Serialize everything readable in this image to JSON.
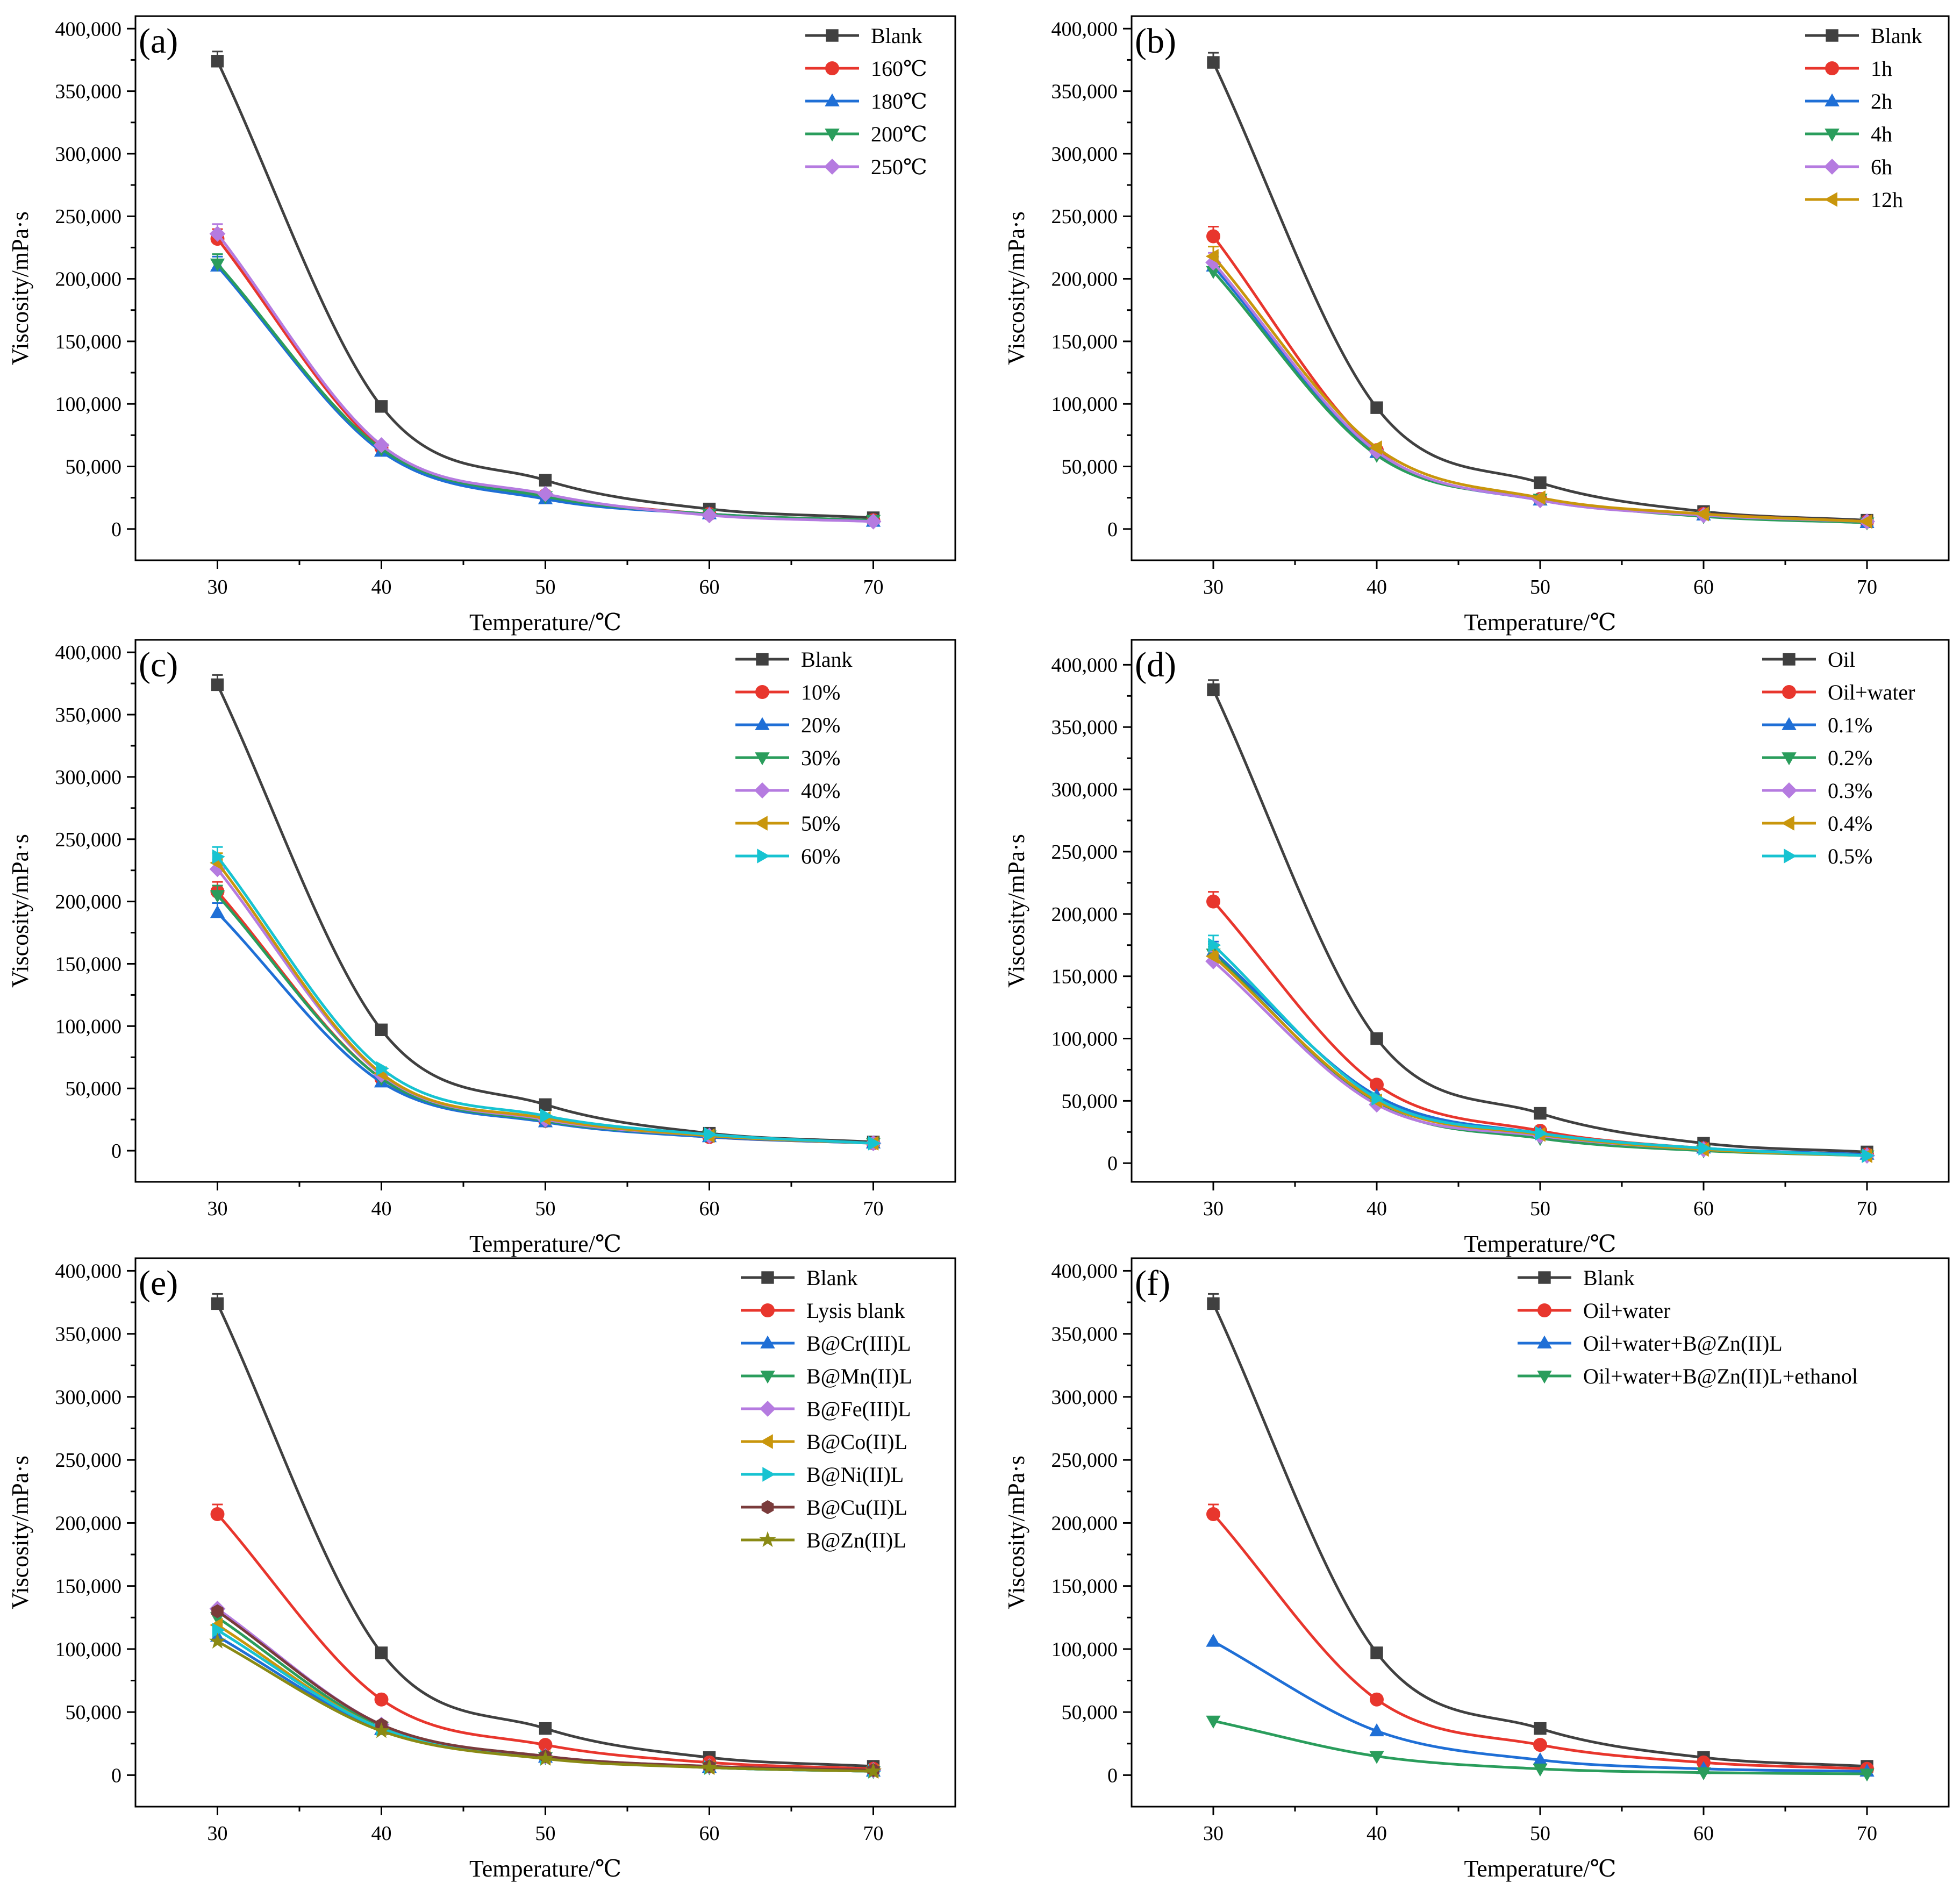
{
  "chart_data": [
    {
      "id": "a",
      "type": "line",
      "panel_label": "(a)",
      "xlabel": "Temperature/℃",
      "ylabel": "Viscosity/mPa·s",
      "x": [
        30,
        40,
        50,
        60,
        70
      ],
      "xlim": [
        25,
        75
      ],
      "ylim": [
        -25000,
        410000
      ],
      "xticks": [
        "30",
        "40",
        "50",
        "60",
        "70"
      ],
      "yticks": [
        "0",
        "50,000",
        "100,000",
        "150,000",
        "200,000",
        "250,000",
        "300,000",
        "350,000",
        "400,000"
      ],
      "legend_position": "top-right",
      "series": [
        {
          "name": "Blank",
          "color": "#404040",
          "marker": "square",
          "values": [
            374000,
            98000,
            39000,
            16000,
            9000
          ]
        },
        {
          "name": "160℃",
          "color": "#e8362d",
          "marker": "circle",
          "values": [
            232000,
            65000,
            27000,
            12000,
            7000
          ]
        },
        {
          "name": "180℃",
          "color": "#1f6fd6",
          "marker": "triangle-up",
          "values": [
            210000,
            62000,
            24000,
            12000,
            6000
          ]
        },
        {
          "name": "200℃",
          "color": "#2a9d5c",
          "marker": "triangle-down",
          "values": [
            212000,
            64000,
            26000,
            12000,
            7000
          ]
        },
        {
          "name": "250℃",
          "color": "#b57be0",
          "marker": "diamond",
          "values": [
            236000,
            67000,
            28000,
            11000,
            6000
          ]
        }
      ]
    },
    {
      "id": "b",
      "type": "line",
      "panel_label": "(b)",
      "xlabel": "Temperature/℃",
      "ylabel": "Viscosity/mPa·s",
      "x": [
        30,
        40,
        50,
        60,
        70
      ],
      "xlim": [
        25,
        75
      ],
      "ylim": [
        -25000,
        410000
      ],
      "xticks": [
        "30",
        "40",
        "50",
        "60",
        "70"
      ],
      "yticks": [
        "0",
        "50,000",
        "100,000",
        "150,000",
        "200,000",
        "250,000",
        "300,000",
        "350,000",
        "400,000"
      ],
      "legend_position": "top-right",
      "series": [
        {
          "name": "Blank",
          "color": "#404040",
          "marker": "square",
          "values": [
            373000,
            97000,
            37000,
            14000,
            7000
          ]
        },
        {
          "name": "1h",
          "color": "#e8362d",
          "marker": "circle",
          "values": [
            234000,
            63000,
            24000,
            12000,
            6000
          ]
        },
        {
          "name": "2h",
          "color": "#1f6fd6",
          "marker": "triangle-up",
          "values": [
            210000,
            61000,
            23000,
            11000,
            5000
          ]
        },
        {
          "name": "4h",
          "color": "#2a9d5c",
          "marker": "triangle-down",
          "values": [
            206000,
            59000,
            24000,
            10000,
            5000
          ]
        },
        {
          "name": "6h",
          "color": "#b57be0",
          "marker": "diamond",
          "values": [
            213000,
            62000,
            23000,
            11000,
            6000
          ]
        },
        {
          "name": "12h",
          "color": "#c9960c",
          "marker": "triangle-left",
          "values": [
            218000,
            65000,
            25000,
            12000,
            6000
          ]
        }
      ]
    },
    {
      "id": "c",
      "type": "line",
      "panel_label": "(c)",
      "xlabel": "Temperature/℃",
      "ylabel": "Viscosity/mPa·s",
      "x": [
        30,
        40,
        50,
        60,
        70
      ],
      "xlim": [
        25,
        75
      ],
      "ylim": [
        -25000,
        410000
      ],
      "xticks": [
        "30",
        "40",
        "50",
        "60",
        "70"
      ],
      "yticks": [
        "0",
        "50,000",
        "100,000",
        "150,000",
        "200,000",
        "250,000",
        "300,000",
        "350,000",
        "400,000"
      ],
      "legend_position": "top-right",
      "series": [
        {
          "name": "Blank",
          "color": "#404040",
          "marker": "square",
          "values": [
            374000,
            97000,
            37000,
            14000,
            7000
          ]
        },
        {
          "name": "10%",
          "color": "#e8362d",
          "marker": "circle",
          "values": [
            208000,
            58000,
            24000,
            11000,
            6000
          ]
        },
        {
          "name": "20%",
          "color": "#1f6fd6",
          "marker": "triangle-up",
          "values": [
            191000,
            55000,
            23000,
            11000,
            6000
          ]
        },
        {
          "name": "30%",
          "color": "#2a9d5c",
          "marker": "triangle-down",
          "values": [
            205000,
            58000,
            24000,
            12000,
            6000
          ]
        },
        {
          "name": "40%",
          "color": "#b57be0",
          "marker": "diamond",
          "values": [
            226000,
            61000,
            25000,
            12000,
            6000
          ]
        },
        {
          "name": "50%",
          "color": "#c9960c",
          "marker": "triangle-left",
          "values": [
            231000,
            62000,
            26000,
            12000,
            6000
          ]
        },
        {
          "name": "60%",
          "color": "#17c3d1",
          "marker": "triangle-right",
          "values": [
            236000,
            66000,
            28000,
            13000,
            6000
          ]
        }
      ]
    },
    {
      "id": "d",
      "type": "line",
      "panel_label": "(d)",
      "xlabel": "Temperature/℃",
      "ylabel": "Viscosity/mPa·s",
      "x": [
        30,
        40,
        50,
        60,
        70
      ],
      "xlim": [
        25,
        75
      ],
      "ylim": [
        -15000,
        420000
      ],
      "xticks": [
        "30",
        "40",
        "50",
        "60",
        "70"
      ],
      "yticks": [
        "0",
        "50,000",
        "100,000",
        "150,000",
        "200,000",
        "250,000",
        "300,000",
        "350,000",
        "400,000"
      ],
      "legend_position": "top-right",
      "series": [
        {
          "name": "Oil",
          "color": "#404040",
          "marker": "square",
          "values": [
            380000,
            100000,
            40000,
            16000,
            9000
          ]
        },
        {
          "name": "Oil+water",
          "color": "#e8362d",
          "marker": "circle",
          "values": [
            210000,
            63000,
            26000,
            12000,
            7000
          ]
        },
        {
          "name": "0.1%",
          "color": "#1f6fd6",
          "marker": "triangle-up",
          "values": [
            170000,
            54000,
            24000,
            12000,
            7000
          ]
        },
        {
          "name": "0.2%",
          "color": "#2a9d5c",
          "marker": "triangle-down",
          "values": [
            168000,
            48000,
            20000,
            10000,
            6000
          ]
        },
        {
          "name": "0.3%",
          "color": "#b57be0",
          "marker": "diamond",
          "values": [
            162000,
            47000,
            22000,
            11000,
            6000
          ]
        },
        {
          "name": "0.4%",
          "color": "#c9960c",
          "marker": "triangle-left",
          "values": [
            166000,
            50000,
            23000,
            11000,
            6000
          ]
        },
        {
          "name": "0.5%",
          "color": "#17c3d1",
          "marker": "triangle-right",
          "values": [
            175000,
            52000,
            24000,
            12000,
            6000
          ]
        }
      ]
    },
    {
      "id": "e",
      "type": "line",
      "panel_label": "(e)",
      "xlabel": "Temperature/℃",
      "ylabel": "Viscosity/mPa·s",
      "x": [
        30,
        40,
        50,
        60,
        70
      ],
      "xlim": [
        25,
        75
      ],
      "ylim": [
        -25000,
        410000
      ],
      "xticks": [
        "30",
        "40",
        "50",
        "60",
        "70"
      ],
      "yticks": [
        "0",
        "50,000",
        "100,000",
        "150,000",
        "200,000",
        "250,000",
        "300,000",
        "350,000",
        "400,000"
      ],
      "legend_position": "top-right",
      "series": [
        {
          "name": "Blank",
          "color": "#404040",
          "marker": "square",
          "values": [
            374000,
            97000,
            37000,
            14000,
            7000
          ]
        },
        {
          "name": "Lysis blank",
          "color": "#e8362d",
          "marker": "circle",
          "values": [
            207000,
            60000,
            24000,
            10000,
            5000
          ]
        },
        {
          "name": "B@Cr(III)L",
          "color": "#1f6fd6",
          "marker": "triangle-up",
          "values": [
            110000,
            36000,
            14000,
            6000,
            3000
          ]
        },
        {
          "name": "B@Mn(II)L",
          "color": "#2a9d5c",
          "marker": "triangle-down",
          "values": [
            125000,
            38000,
            14000,
            6000,
            3000
          ]
        },
        {
          "name": "B@Fe(III)L",
          "color": "#b57be0",
          "marker": "diamond",
          "values": [
            132000,
            40000,
            15000,
            7000,
            4000
          ]
        },
        {
          "name": "B@Co(II)L",
          "color": "#c9960c",
          "marker": "triangle-left",
          "values": [
            119000,
            37000,
            14000,
            6000,
            3000
          ]
        },
        {
          "name": "B@Ni(II)L",
          "color": "#17c3d1",
          "marker": "triangle-right",
          "values": [
            115000,
            37000,
            14000,
            6000,
            3000
          ]
        },
        {
          "name": "B@Cu(II)L",
          "color": "#7a3b3b",
          "marker": "hexagon",
          "values": [
            130000,
            40000,
            15000,
            7000,
            4000
          ]
        },
        {
          "name": "B@Zn(II)L",
          "color": "#8a8a14",
          "marker": "star",
          "values": [
            106000,
            35000,
            13000,
            6000,
            3000
          ]
        }
      ]
    },
    {
      "id": "f",
      "type": "line",
      "panel_label": "(f)",
      "xlabel": "Temperature/℃",
      "ylabel": "Viscosity/mPa·s",
      "x": [
        30,
        40,
        50,
        60,
        70
      ],
      "xlim": [
        25,
        75
      ],
      "ylim": [
        -25000,
        410000
      ],
      "xticks": [
        "30",
        "40",
        "50",
        "60",
        "70"
      ],
      "yticks": [
        "0",
        "50,000",
        "100,000",
        "150,000",
        "200,000",
        "250,000",
        "300,000",
        "350,000",
        "400,000"
      ],
      "legend_position": "top-right",
      "series": [
        {
          "name": "Blank",
          "color": "#404040",
          "marker": "square",
          "values": [
            374000,
            97000,
            37000,
            14000,
            7000
          ]
        },
        {
          "name": "Oil+water",
          "color": "#e8362d",
          "marker": "circle",
          "values": [
            207000,
            60000,
            24000,
            10000,
            5000
          ]
        },
        {
          "name": "Oil+water+B@Zn(II)L",
          "color": "#1f6fd6",
          "marker": "triangle-up",
          "values": [
            106000,
            35000,
            12000,
            5000,
            3000
          ]
        },
        {
          "name": "Oil+water+B@Zn(II)L+ethanol",
          "color": "#2a9d5c",
          "marker": "triangle-down",
          "values": [
            43000,
            15000,
            5000,
            2000,
            1000
          ]
        }
      ]
    }
  ]
}
